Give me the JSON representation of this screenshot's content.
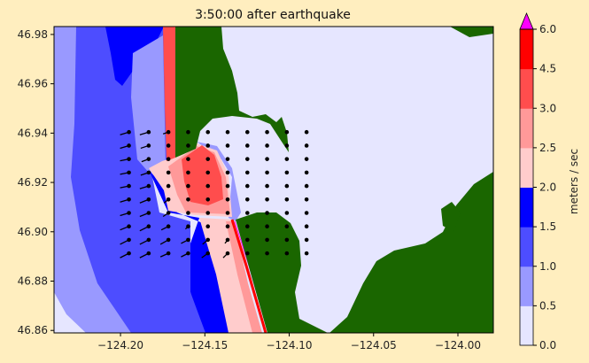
{
  "chart_data": {
    "type": "heatmap",
    "title": "3:50:00 after earthquake",
    "xlabel": "",
    "ylabel": "",
    "xlim": [
      -124.2394,
      -123.979
    ],
    "ylim": [
      46.859,
      46.9832
    ],
    "xticks": [
      -124.2,
      -124.15,
      -124.1,
      -124.05,
      -124.0
    ],
    "xtick_labels": [
      "−124.20",
      "−124.15",
      "−124.10",
      "−124.05",
      "−124.00"
    ],
    "yticks": [
      46.98,
      46.96,
      46.94,
      46.92,
      46.9,
      46.88,
      46.86
    ],
    "ytick_labels": [
      "46.98",
      "46.96",
      "46.94",
      "46.92",
      "46.90",
      "46.88",
      "46.86"
    ],
    "colorbar": {
      "label": "meters / sec",
      "levels": [
        0.0,
        0.5,
        1.0,
        1.5,
        2.0,
        2.5,
        3.0,
        4.5,
        6.0
      ],
      "level_labels": [
        "0.0",
        "0.5",
        "1.0",
        "1.5",
        "2.0",
        "2.5",
        "3.0",
        "4.5",
        "6.0"
      ],
      "colors": [
        "#e6e6ff",
        "#9999ff",
        "#4d4dff",
        "#0000ff",
        "#ffcccc",
        "#ff9999",
        "#ff4d4d",
        "#ff0000"
      ],
      "extend_max_color": "#ff00ff"
    },
    "land_color": "#1a6600",
    "quiver": {
      "lon_start": -124.195,
      "lon_step": 0.0117,
      "lat_start": 46.9404,
      "lat_step": -0.00546,
      "u": [
        [
          -1.0,
          -1.0,
          -0.6,
          0,
          0,
          0,
          0,
          0,
          0,
          0
        ],
        [
          -1.0,
          -0.9,
          0,
          0,
          0,
          0,
          0,
          0,
          0,
          0
        ],
        [
          -1.0,
          -0.8,
          -0.2,
          0,
          0,
          0,
          0,
          0,
          0,
          0
        ],
        [
          -1.0,
          -0.9,
          0,
          0,
          0,
          0,
          0,
          0,
          0,
          0
        ],
        [
          -1.0,
          -1.0,
          -0.2,
          0,
          0,
          0,
          0,
          0,
          0,
          0
        ],
        [
          -1.0,
          -1.0,
          -0.5,
          0,
          0,
          0,
          0,
          0,
          0,
          0
        ],
        [
          -1.0,
          -1.0,
          -0.6,
          0,
          0,
          0,
          0,
          0,
          0,
          0
        ],
        [
          -1.0,
          -1.0,
          -0.8,
          -0.3,
          0,
          0,
          0,
          0,
          0,
          0
        ],
        [
          -1.0,
          -1.0,
          -0.9,
          -0.8,
          -0.6,
          -0.3,
          0,
          0,
          0,
          0
        ],
        [
          -1.0,
          -1.0,
          -0.9,
          -0.8,
          -0.7,
          -0.5,
          0,
          0,
          0,
          0
        ]
      ],
      "v": [
        [
          -0.3,
          -0.3,
          -0.2,
          0,
          0,
          0,
          0,
          0,
          0,
          0
        ],
        [
          -0.3,
          -0.3,
          0,
          0,
          0,
          0,
          0,
          0,
          0,
          0
        ],
        [
          -0.2,
          -0.3,
          -0.1,
          0,
          0,
          0,
          0,
          0,
          0,
          0
        ],
        [
          -0.2,
          -0.3,
          0,
          0,
          0,
          0,
          0,
          0,
          0,
          0
        ],
        [
          -0.2,
          -0.3,
          -0.1,
          0,
          0,
          0,
          0,
          0,
          0,
          0
        ],
        [
          -0.3,
          -0.4,
          -0.4,
          0,
          0,
          0,
          0,
          0,
          0,
          0
        ],
        [
          -0.3,
          -0.4,
          -0.4,
          0,
          0,
          0,
          0,
          0,
          0,
          0
        ],
        [
          -0.4,
          -0.5,
          -0.4,
          -0.3,
          0,
          0,
          0,
          0,
          0,
          0
        ],
        [
          -0.5,
          -0.5,
          -0.5,
          -0.4,
          -0.5,
          -0.4,
          0,
          0,
          0,
          0
        ],
        [
          -0.5,
          -0.5,
          -0.4,
          -0.4,
          -0.5,
          -0.5,
          0,
          0,
          0,
          0
        ]
      ]
    }
  }
}
